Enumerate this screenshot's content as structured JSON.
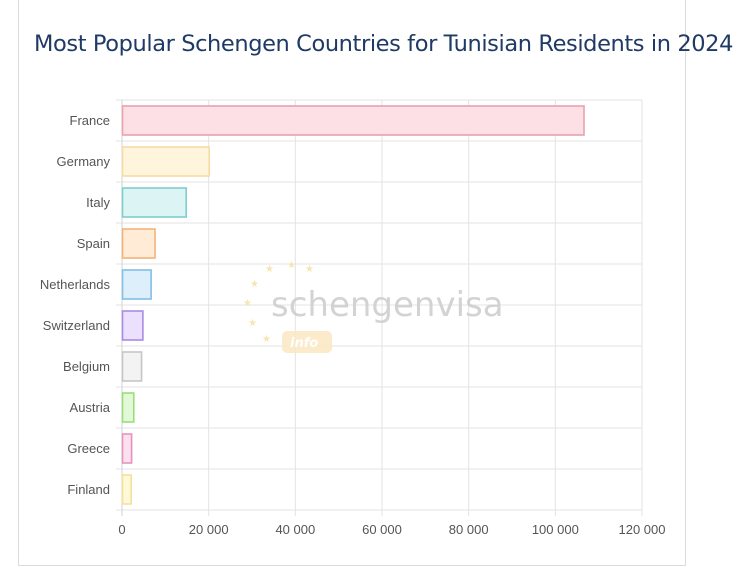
{
  "chart_data": {
    "type": "bar",
    "orientation": "horizontal",
    "title": "Most Popular Schengen Countries for Tunisian Residents in 2024",
    "categories": [
      "France",
      "Germany",
      "Italy",
      "Spain",
      "Netherlands",
      "Switzerland",
      "Belgium",
      "Austria",
      "Greece",
      "Finland"
    ],
    "values": [
      106500,
      20000,
      14700,
      7500,
      6600,
      4700,
      4400,
      2600,
      2100,
      2000
    ],
    "xlim": [
      0,
      120000
    ],
    "xticks": [
      0,
      20000,
      40000,
      60000,
      80000,
      100000,
      120000
    ],
    "xtick_labels": [
      "0",
      "20 000",
      "40 000",
      "60 000",
      "80 000",
      "100 000",
      "120 000"
    ],
    "xlabel": "",
    "ylabel": "",
    "grid": true,
    "legend": "none",
    "bar_fills": [
      "#fde0e6",
      "#fff5dd",
      "#dcf4f3",
      "#ffebd6",
      "#ddeffb",
      "#ebe0fe",
      "#f3f3f4",
      "#e2f8d7",
      "#fbe0ee",
      "#fff9d9"
    ],
    "bar_strokes": [
      "#e8a2b0",
      "#f7dba4",
      "#7ccfcc",
      "#f4b27a",
      "#83bfe6",
      "#a98ae6",
      "#c6c6c8",
      "#9ade7c",
      "#e595bd",
      "#f3e29a"
    ]
  },
  "watermark": {
    "text": "schengenvisa",
    "subtext": "info"
  }
}
